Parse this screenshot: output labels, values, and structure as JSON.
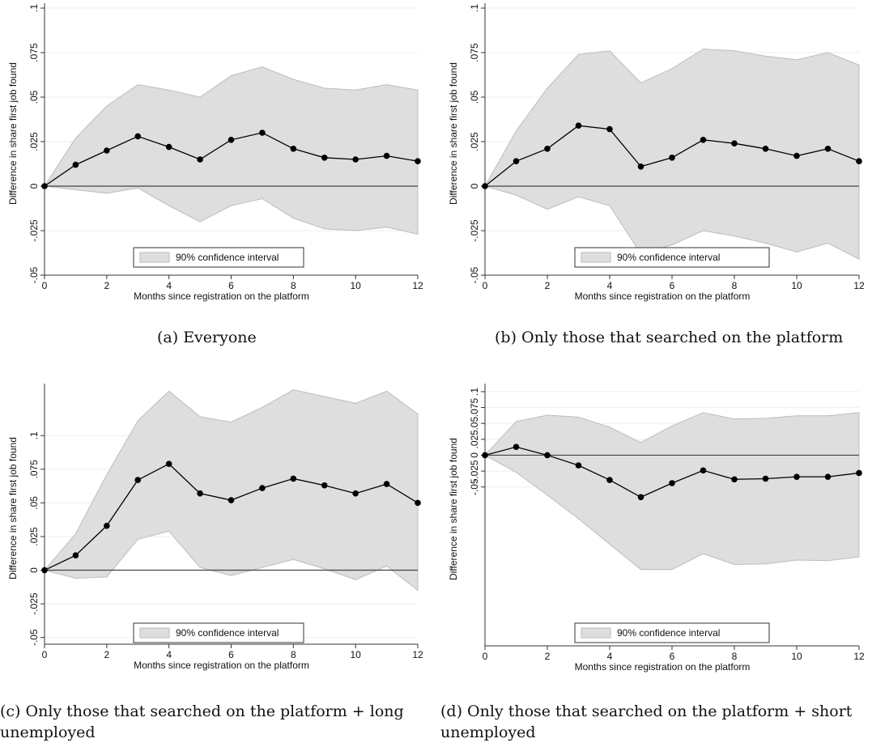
{
  "figure": {
    "captions": [
      "(a) Everyone",
      "(b) Only those that searched on the platform",
      "(c) Only those that searched on the platform + long unemployed",
      "(d) Only those that searched on the platform + short unemployed"
    ]
  },
  "colors": {
    "band": "#dedede",
    "band_edge": "#bcbcbc",
    "line": "#000000",
    "zero": "#444444"
  },
  "chart_data": [
    {
      "type": "line",
      "xlabel": "Months since registration on the platform",
      "ylabel": "Difference in share first job found",
      "xlim": [
        0,
        12
      ],
      "ylim": [
        -0.05,
        0.1
      ],
      "x_ticks": [
        "0",
        "2",
        "4",
        "6",
        "8",
        "10",
        "12"
      ],
      "y_ticks": [
        "-.05",
        "-.025",
        "0",
        ".025",
        ".05",
        ".075",
        ".1"
      ],
      "legend": "90% confidence interval",
      "legend_position": "bottom",
      "x": [
        0,
        1,
        2,
        3,
        4,
        5,
        6,
        7,
        8,
        9,
        10,
        11,
        12
      ],
      "series": [
        {
          "values": [
            0,
            0.012,
            0.02,
            0.028,
            0.022,
            0.015,
            0.026,
            0.03,
            0.021,
            0.016,
            0.015,
            0.017,
            0.014
          ]
        },
        {
          "name": "90% confidence interval",
          "lower": [
            0,
            -0.002,
            -0.004,
            -0.001,
            -0.011,
            -0.02,
            -0.011,
            -0.007,
            -0.018,
            -0.024,
            -0.025,
            -0.023,
            -0.027
          ],
          "upper": [
            0,
            0.027,
            0.045,
            0.057,
            0.054,
            0.05,
            0.062,
            0.067,
            0.06,
            0.055,
            0.054,
            0.057,
            0.054
          ]
        }
      ]
    },
    {
      "type": "line",
      "xlabel": "Months since registration on the platform",
      "ylabel": "Difference in share first job found",
      "xlim": [
        0,
        12
      ],
      "ylim": [
        -0.05,
        0.1
      ],
      "x_ticks": [
        "0",
        "2",
        "4",
        "6",
        "8",
        "10",
        "12"
      ],
      "y_ticks": [
        "-.05",
        "-.025",
        "0",
        ".025",
        ".05",
        ".075",
        ".1"
      ],
      "legend": "90% confidence interval",
      "legend_position": "bottom",
      "x": [
        0,
        1,
        2,
        3,
        4,
        5,
        6,
        7,
        8,
        9,
        10,
        11,
        12
      ],
      "series": [
        {
          "values": [
            0,
            0.014,
            0.021,
            0.034,
            0.032,
            0.011,
            0.016,
            0.026,
            0.024,
            0.021,
            0.017,
            0.021,
            0.014
          ]
        },
        {
          "name": "90% confidence interval",
          "lower": [
            0,
            -0.005,
            -0.013,
            -0.006,
            -0.011,
            -0.038,
            -0.033,
            -0.025,
            -0.028,
            -0.032,
            -0.037,
            -0.032,
            -0.041
          ],
          "upper": [
            0,
            0.031,
            0.055,
            0.074,
            0.076,
            0.058,
            0.066,
            0.077,
            0.076,
            0.073,
            0.071,
            0.075,
            0.068
          ]
        }
      ]
    },
    {
      "type": "line",
      "xlabel": "Months since registration on the platform",
      "ylabel": "Difference in share first job found",
      "xlim": [
        0,
        12
      ],
      "ylim": [
        -0.055,
        0.135
      ],
      "x_ticks": [
        "0",
        "2",
        "4",
        "6",
        "8",
        "10",
        "12"
      ],
      "y_ticks": [
        "-.05",
        "-.025",
        "0",
        ".025",
        ".05",
        ".075",
        ".1"
      ],
      "legend": "90% confidence interval",
      "legend_position": "bottom",
      "x": [
        0,
        1,
        2,
        3,
        4,
        5,
        6,
        7,
        8,
        9,
        10,
        11,
        12
      ],
      "series": [
        {
          "values": [
            0,
            0.011,
            0.033,
            0.067,
            0.079,
            0.057,
            0.052,
            0.061,
            0.068,
            0.063,
            0.057,
            0.064,
            0.05
          ]
        },
        {
          "name": "90% confidence interval",
          "lower": [
            0,
            -0.006,
            -0.005,
            0.023,
            0.029,
            0.002,
            -0.004,
            0.002,
            0.008,
            0.001,
            -0.007,
            0.003,
            -0.015
          ],
          "upper": [
            0,
            0.027,
            0.071,
            0.111,
            0.133,
            0.114,
            0.11,
            0.121,
            0.134,
            0.129,
            0.124,
            0.133,
            0.116
          ]
        }
      ]
    },
    {
      "type": "line",
      "xlabel": "Months since registration on the platform",
      "ylabel": "Difference in share first job found",
      "xlim": [
        0,
        12
      ],
      "ylim": [
        -0.3,
        0.105
      ],
      "x_ticks": [
        "0",
        "2",
        "4",
        "6",
        "8",
        "10",
        "12"
      ],
      "y_ticks": [
        "-.05",
        "-.025",
        "0",
        ".025",
        ".05",
        ".075",
        ".1"
      ],
      "legend": "90% confidence interval",
      "legend_position": "bottom",
      "x": [
        0,
        1,
        2,
        3,
        4,
        5,
        6,
        7,
        8,
        9,
        10,
        11,
        12
      ],
      "series": [
        {
          "values": [
            0,
            0.013,
            0,
            -0.016,
            -0.039,
            -0.066,
            -0.044,
            -0.024,
            -0.038,
            -0.037,
            -0.034,
            -0.034,
            -0.028
          ]
        },
        {
          "name": "90% confidence interval",
          "lower": [
            0,
            -0.027,
            -0.063,
            -0.1,
            -0.14,
            -0.18,
            -0.18,
            -0.155,
            -0.172,
            -0.171,
            -0.165,
            -0.166,
            -0.16
          ],
          "upper": [
            0,
            0.053,
            0.063,
            0.06,
            0.044,
            0.02,
            0.046,
            0.067,
            0.057,
            0.058,
            0.062,
            0.062,
            0.067
          ]
        }
      ]
    }
  ]
}
